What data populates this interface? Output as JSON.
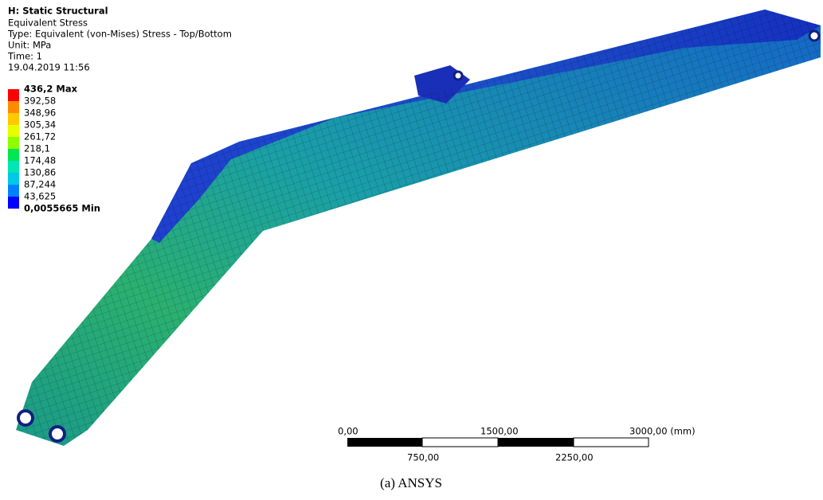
{
  "header": {
    "title": "H: Static Structural",
    "lines": [
      "Equivalent Stress",
      "Type: Equivalent (von-Mises) Stress - Top/Bottom",
      "Unit: MPa",
      "Time: 1",
      "19.04.2019 11:56"
    ]
  },
  "legend": {
    "labels": [
      "436,2 Max",
      "392,58",
      "348,96",
      "305,34",
      "261,72",
      "218,1",
      "174,48",
      "130,86",
      "87,244",
      "43,625",
      "0,0055665 Min"
    ],
    "colors": [
      "#ff0000",
      "#ff8c00",
      "#ffc800",
      "#e6ff00",
      "#8cff00",
      "#00e650",
      "#00e6b4",
      "#00c8e6",
      "#0082ff",
      "#0000ff"
    ]
  },
  "scale_bar": {
    "top_labels": [
      "0,00",
      "1500,00",
      "3000,00 (mm)"
    ],
    "bottom_labels": [
      "750,00",
      "2250,00"
    ]
  },
  "caption": "(a) ANSYS"
}
